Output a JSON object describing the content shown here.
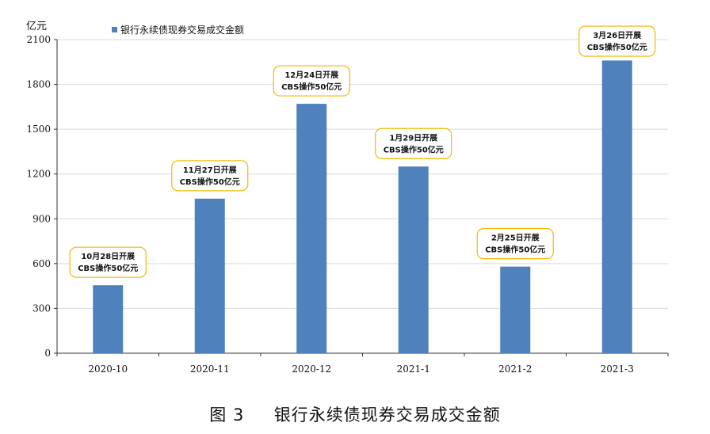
{
  "chart_data": {
    "type": "bar",
    "unit_label": "亿元",
    "legend": {
      "label": "银行永续债现券交易成交金额",
      "placement": "top-left"
    },
    "categories": [
      "2020-10",
      "2020-11",
      "2020-12",
      "2021-1",
      "2021-2",
      "2021-3"
    ],
    "series": [
      {
        "name": "银行永续债现券交易成交金额",
        "values": [
          455,
          1035,
          1670,
          1250,
          580,
          1960
        ]
      }
    ],
    "ylim": [
      0,
      2100
    ],
    "yticks": [
      0,
      300,
      600,
      900,
      1200,
      1500,
      1800,
      2100
    ],
    "grid": true,
    "bar_color": "#4f81bd",
    "annotations": [
      {
        "category": "2020-10",
        "line1": "10月28日开展",
        "line2": "CBS操作50亿元"
      },
      {
        "category": "2020-11",
        "line1": "11月27日开展",
        "line2": "CBS操作50亿元"
      },
      {
        "category": "2020-12",
        "line1": "12月24日开展",
        "line2": "CBS操作50亿元"
      },
      {
        "category": "2021-1",
        "line1": "1月29日开展",
        "line2": "CBS操作50亿元"
      },
      {
        "category": "2021-2",
        "line1": "2月25日开展",
        "line2": "CBS操作50亿元"
      },
      {
        "category": "2021-3",
        "line1": "3月26日开展",
        "line2": "CBS操作50亿元"
      }
    ],
    "annotation_border_color": "#f5b800"
  },
  "caption": {
    "figure_no": "图 3",
    "title": "银行永续债现券交易成交金额"
  }
}
